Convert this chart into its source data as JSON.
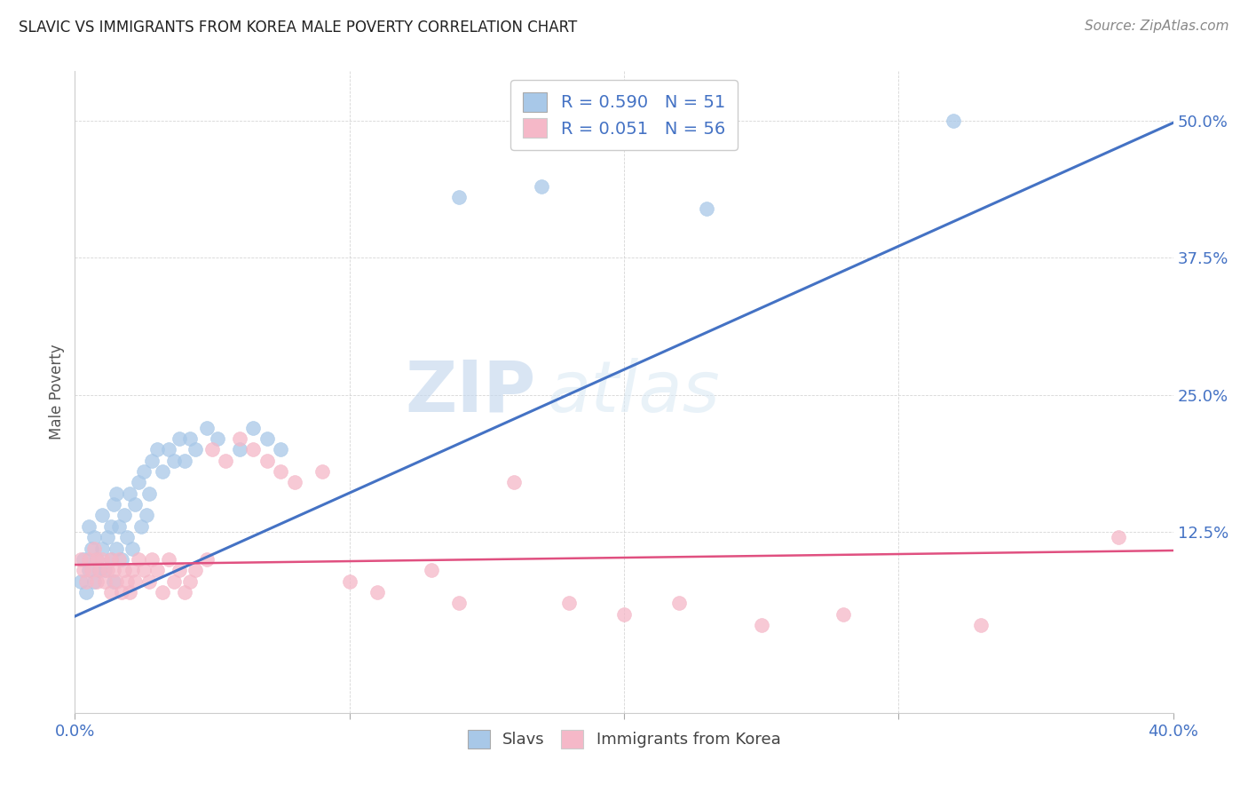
{
  "title": "SLAVIC VS IMMIGRANTS FROM KOREA MALE POVERTY CORRELATION CHART",
  "source": "Source: ZipAtlas.com",
  "ylabel": "Male Poverty",
  "ytick_labels": [
    "12.5%",
    "25.0%",
    "37.5%",
    "50.0%"
  ],
  "ytick_values": [
    0.125,
    0.25,
    0.375,
    0.5
  ],
  "xlim": [
    0.0,
    0.4
  ],
  "ylim": [
    -0.04,
    0.545
  ],
  "legend1_R": "0.590",
  "legend1_N": "51",
  "legend2_R": "0.051",
  "legend2_N": "56",
  "color_slavs": "#A8C8E8",
  "color_korea": "#F5B8C8",
  "color_line_slavs": "#4472C4",
  "color_line_korea": "#E05080",
  "legend_label_slavs": "Slavs",
  "legend_label_korea": "Immigrants from Korea",
  "watermark_zip": "ZIP",
  "watermark_atlas": "atlas",
  "slavs_x": [
    0.002,
    0.003,
    0.004,
    0.005,
    0.005,
    0.006,
    0.007,
    0.007,
    0.008,
    0.009,
    0.01,
    0.01,
    0.011,
    0.012,
    0.013,
    0.013,
    0.014,
    0.014,
    0.015,
    0.015,
    0.016,
    0.017,
    0.018,
    0.019,
    0.02,
    0.021,
    0.022,
    0.023,
    0.024,
    0.025,
    0.026,
    0.027,
    0.028,
    0.03,
    0.032,
    0.034,
    0.036,
    0.038,
    0.04,
    0.042,
    0.044,
    0.048,
    0.052,
    0.06,
    0.065,
    0.07,
    0.075,
    0.14,
    0.17,
    0.23,
    0.32
  ],
  "slavs_y": [
    0.08,
    0.1,
    0.07,
    0.09,
    0.13,
    0.11,
    0.08,
    0.12,
    0.1,
    0.09,
    0.11,
    0.14,
    0.09,
    0.12,
    0.1,
    0.13,
    0.15,
    0.08,
    0.11,
    0.16,
    0.13,
    0.1,
    0.14,
    0.12,
    0.16,
    0.11,
    0.15,
    0.17,
    0.13,
    0.18,
    0.14,
    0.16,
    0.19,
    0.2,
    0.18,
    0.2,
    0.19,
    0.21,
    0.19,
    0.21,
    0.2,
    0.22,
    0.21,
    0.2,
    0.22,
    0.21,
    0.2,
    0.43,
    0.44,
    0.42,
    0.5
  ],
  "korea_x": [
    0.002,
    0.003,
    0.004,
    0.005,
    0.006,
    0.007,
    0.008,
    0.008,
    0.009,
    0.01,
    0.011,
    0.012,
    0.013,
    0.013,
    0.014,
    0.015,
    0.016,
    0.017,
    0.018,
    0.019,
    0.02,
    0.021,
    0.022,
    0.023,
    0.025,
    0.027,
    0.028,
    0.03,
    0.032,
    0.034,
    0.036,
    0.038,
    0.04,
    0.042,
    0.044,
    0.048,
    0.05,
    0.055,
    0.06,
    0.065,
    0.07,
    0.075,
    0.08,
    0.09,
    0.1,
    0.11,
    0.13,
    0.14,
    0.16,
    0.18,
    0.2,
    0.22,
    0.25,
    0.28,
    0.33,
    0.38
  ],
  "korea_y": [
    0.1,
    0.09,
    0.08,
    0.1,
    0.09,
    0.11,
    0.08,
    0.1,
    0.09,
    0.1,
    0.08,
    0.09,
    0.1,
    0.07,
    0.09,
    0.08,
    0.1,
    0.07,
    0.09,
    0.08,
    0.07,
    0.09,
    0.08,
    0.1,
    0.09,
    0.08,
    0.1,
    0.09,
    0.07,
    0.1,
    0.08,
    0.09,
    0.07,
    0.08,
    0.09,
    0.1,
    0.2,
    0.19,
    0.21,
    0.2,
    0.19,
    0.18,
    0.17,
    0.18,
    0.08,
    0.07,
    0.09,
    0.06,
    0.17,
    0.06,
    0.05,
    0.06,
    0.04,
    0.05,
    0.04,
    0.12
  ],
  "slavs_line_x0": 0.0,
  "slavs_line_y0": 0.048,
  "slavs_line_x1": 0.4,
  "slavs_line_y1": 0.498,
  "korea_line_x0": 0.0,
  "korea_line_y0": 0.095,
  "korea_line_x1": 0.4,
  "korea_line_y1": 0.108
}
